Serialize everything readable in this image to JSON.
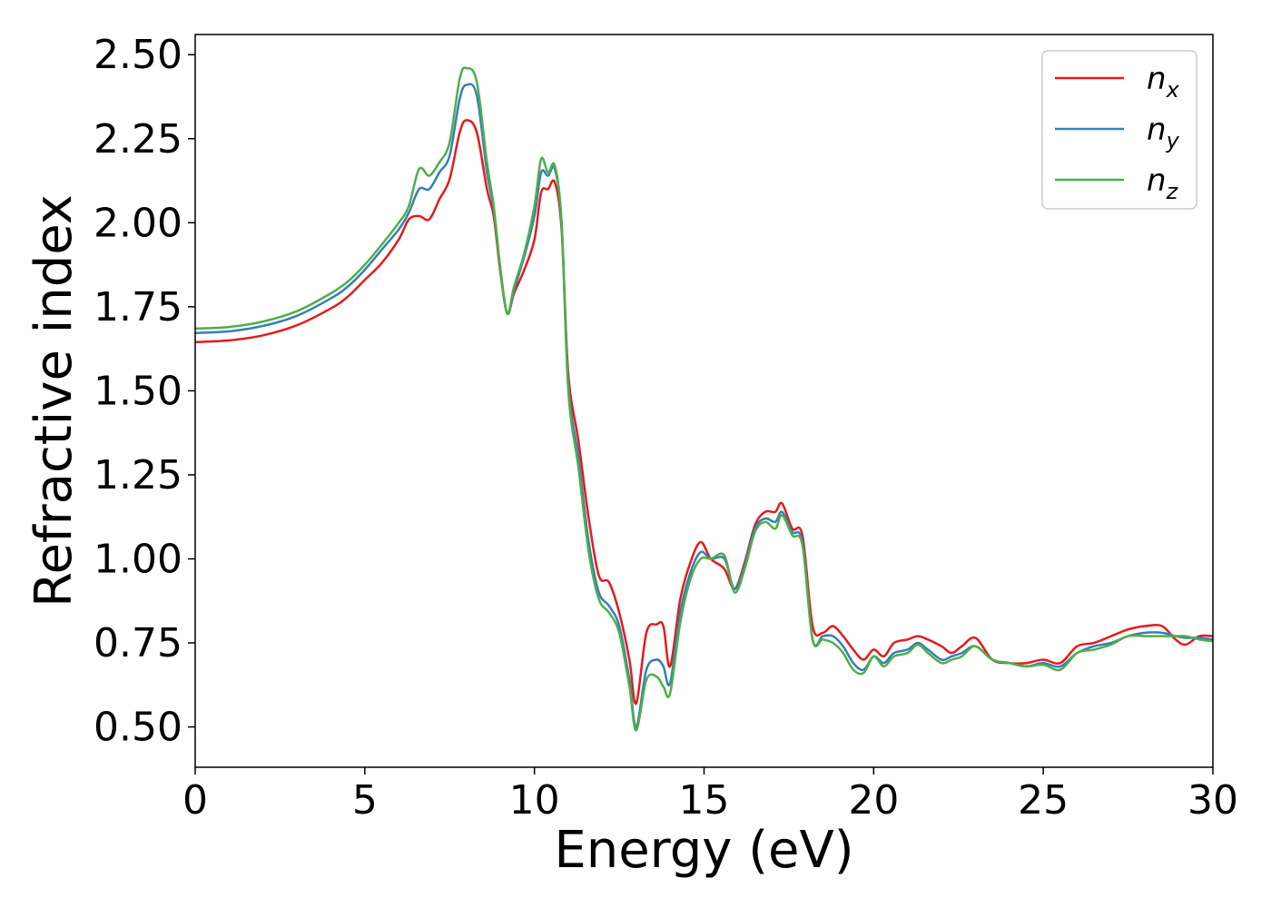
{
  "chart_data": {
    "type": "line",
    "title": "",
    "xlabel": "Energy (eV)",
    "ylabel": "Refractive index",
    "xlim": [
      0,
      30
    ],
    "ylim": [
      0.38,
      2.56
    ],
    "xticks": [
      0,
      5,
      10,
      15,
      20,
      25,
      30
    ],
    "xtick_labels": [
      "0",
      "5",
      "10",
      "15",
      "20",
      "25",
      "30"
    ],
    "yticks": [
      0.5,
      0.75,
      1.0,
      1.25,
      1.5,
      1.75,
      2.0,
      2.25,
      2.5
    ],
    "ytick_labels": [
      "0.50",
      "0.75",
      "1.00",
      "1.25",
      "1.50",
      "1.75",
      "2.00",
      "2.25",
      "2.50"
    ],
    "grid": false,
    "legend_position": "top-right",
    "series": [
      {
        "name": "n_x",
        "label_base": "n",
        "label_sub": "x",
        "color": "#e41a1c",
        "points": [
          [
            0,
            1.645
          ],
          [
            1,
            1.65
          ],
          [
            2,
            1.665
          ],
          [
            3,
            1.695
          ],
          [
            4,
            1.745
          ],
          [
            4.5,
            1.78
          ],
          [
            5,
            1.83
          ],
          [
            5.5,
            1.88
          ],
          [
            6,
            1.95
          ],
          [
            6.3,
            2.01
          ],
          [
            6.6,
            2.02
          ],
          [
            6.9,
            2.01
          ],
          [
            7.2,
            2.07
          ],
          [
            7.5,
            2.13
          ],
          [
            7.8,
            2.27
          ],
          [
            8.0,
            2.305
          ],
          [
            8.3,
            2.27
          ],
          [
            8.6,
            2.1
          ],
          [
            8.8,
            2.02
          ],
          [
            9.0,
            1.85
          ],
          [
            9.2,
            1.73
          ],
          [
            9.4,
            1.79
          ],
          [
            9.7,
            1.86
          ],
          [
            10.0,
            1.95
          ],
          [
            10.2,
            2.09
          ],
          [
            10.4,
            2.1
          ],
          [
            10.6,
            2.12
          ],
          [
            10.8,
            1.98
          ],
          [
            11.0,
            1.55
          ],
          [
            11.3,
            1.35
          ],
          [
            11.6,
            1.12
          ],
          [
            11.9,
            0.95
          ],
          [
            12.2,
            0.93
          ],
          [
            12.5,
            0.84
          ],
          [
            12.8,
            0.7
          ],
          [
            13.0,
            0.57
          ],
          [
            13.3,
            0.78
          ],
          [
            13.6,
            0.805
          ],
          [
            13.8,
            0.8
          ],
          [
            14.0,
            0.68
          ],
          [
            14.3,
            0.88
          ],
          [
            14.6,
            0.99
          ],
          [
            14.9,
            1.05
          ],
          [
            15.2,
            1.0
          ],
          [
            15.6,
            0.97
          ],
          [
            15.9,
            0.91
          ],
          [
            16.2,
            0.99
          ],
          [
            16.5,
            1.1
          ],
          [
            16.8,
            1.14
          ],
          [
            17.1,
            1.14
          ],
          [
            17.3,
            1.165
          ],
          [
            17.6,
            1.09
          ],
          [
            17.9,
            1.07
          ],
          [
            18.2,
            0.8
          ],
          [
            18.5,
            0.78
          ],
          [
            18.8,
            0.8
          ],
          [
            19.1,
            0.77
          ],
          [
            19.4,
            0.73
          ],
          [
            19.7,
            0.7
          ],
          [
            20.0,
            0.73
          ],
          [
            20.3,
            0.71
          ],
          [
            20.6,
            0.75
          ],
          [
            21.0,
            0.76
          ],
          [
            21.3,
            0.77
          ],
          [
            21.6,
            0.76
          ],
          [
            22.0,
            0.74
          ],
          [
            22.3,
            0.72
          ],
          [
            22.6,
            0.74
          ],
          [
            23.0,
            0.765
          ],
          [
            23.5,
            0.7
          ],
          [
            24.0,
            0.69
          ],
          [
            24.5,
            0.69
          ],
          [
            25.0,
            0.7
          ],
          [
            25.5,
            0.69
          ],
          [
            26.0,
            0.74
          ],
          [
            26.5,
            0.75
          ],
          [
            27.0,
            0.77
          ],
          [
            27.5,
            0.79
          ],
          [
            28.0,
            0.8
          ],
          [
            28.5,
            0.8
          ],
          [
            28.9,
            0.76
          ],
          [
            29.2,
            0.745
          ],
          [
            29.6,
            0.77
          ],
          [
            30.0,
            0.77
          ]
        ]
      },
      {
        "name": "n_y",
        "label_base": "n",
        "label_sub": "y",
        "color": "#377eb8",
        "points": [
          [
            0,
            1.672
          ],
          [
            1,
            1.677
          ],
          [
            2,
            1.693
          ],
          [
            3,
            1.723
          ],
          [
            4,
            1.775
          ],
          [
            4.5,
            1.81
          ],
          [
            5,
            1.86
          ],
          [
            5.5,
            1.92
          ],
          [
            6,
            1.98
          ],
          [
            6.3,
            2.03
          ],
          [
            6.6,
            2.1
          ],
          [
            6.9,
            2.1
          ],
          [
            7.2,
            2.15
          ],
          [
            7.5,
            2.2
          ],
          [
            7.8,
            2.37
          ],
          [
            8.0,
            2.41
          ],
          [
            8.3,
            2.38
          ],
          [
            8.6,
            2.15
          ],
          [
            8.8,
            2.04
          ],
          [
            9.0,
            1.86
          ],
          [
            9.2,
            1.73
          ],
          [
            9.4,
            1.8
          ],
          [
            9.7,
            1.9
          ],
          [
            10.0,
            2.02
          ],
          [
            10.2,
            2.15
          ],
          [
            10.4,
            2.14
          ],
          [
            10.6,
            2.16
          ],
          [
            10.8,
            2.0
          ],
          [
            11.0,
            1.52
          ],
          [
            11.3,
            1.3
          ],
          [
            11.6,
            1.05
          ],
          [
            11.9,
            0.9
          ],
          [
            12.2,
            0.86
          ],
          [
            12.5,
            0.8
          ],
          [
            12.8,
            0.64
          ],
          [
            13.0,
            0.5
          ],
          [
            13.3,
            0.67
          ],
          [
            13.6,
            0.7
          ],
          [
            13.8,
            0.68
          ],
          [
            14.0,
            0.63
          ],
          [
            14.3,
            0.84
          ],
          [
            14.6,
            0.96
          ],
          [
            14.9,
            1.02
          ],
          [
            15.2,
            1.0
          ],
          [
            15.6,
            1.0
          ],
          [
            15.9,
            0.91
          ],
          [
            16.2,
            0.98
          ],
          [
            16.5,
            1.09
          ],
          [
            16.8,
            1.12
          ],
          [
            17.1,
            1.11
          ],
          [
            17.3,
            1.14
          ],
          [
            17.6,
            1.08
          ],
          [
            17.9,
            1.05
          ],
          [
            18.2,
            0.76
          ],
          [
            18.5,
            0.77
          ],
          [
            18.8,
            0.77
          ],
          [
            19.1,
            0.74
          ],
          [
            19.4,
            0.69
          ],
          [
            19.7,
            0.67
          ],
          [
            20.0,
            0.71
          ],
          [
            20.3,
            0.69
          ],
          [
            20.6,
            0.72
          ],
          [
            21.0,
            0.73
          ],
          [
            21.3,
            0.75
          ],
          [
            21.6,
            0.73
          ],
          [
            22.0,
            0.7
          ],
          [
            22.3,
            0.71
          ],
          [
            22.6,
            0.72
          ],
          [
            23.0,
            0.74
          ],
          [
            23.5,
            0.7
          ],
          [
            24.0,
            0.69
          ],
          [
            24.5,
            0.68
          ],
          [
            25.0,
            0.69
          ],
          [
            25.5,
            0.68
          ],
          [
            26.0,
            0.72
          ],
          [
            26.5,
            0.74
          ],
          [
            27.0,
            0.75
          ],
          [
            27.5,
            0.77
          ],
          [
            28.0,
            0.78
          ],
          [
            28.5,
            0.78
          ],
          [
            28.9,
            0.77
          ],
          [
            29.2,
            0.765
          ],
          [
            29.6,
            0.765
          ],
          [
            30.0,
            0.76
          ]
        ]
      },
      {
        "name": "n_z",
        "label_base": "n",
        "label_sub": "z",
        "color": "#4daf4a",
        "points": [
          [
            0,
            1.685
          ],
          [
            1,
            1.69
          ],
          [
            2,
            1.706
          ],
          [
            3,
            1.737
          ],
          [
            4,
            1.79
          ],
          [
            4.5,
            1.825
          ],
          [
            5,
            1.875
          ],
          [
            5.5,
            1.935
          ],
          [
            6,
            2.0
          ],
          [
            6.3,
            2.05
          ],
          [
            6.6,
            2.16
          ],
          [
            6.9,
            2.14
          ],
          [
            7.2,
            2.18
          ],
          [
            7.5,
            2.24
          ],
          [
            7.8,
            2.43
          ],
          [
            8.0,
            2.46
          ],
          [
            8.3,
            2.42
          ],
          [
            8.6,
            2.18
          ],
          [
            8.8,
            2.05
          ],
          [
            9.0,
            1.86
          ],
          [
            9.2,
            1.73
          ],
          [
            9.4,
            1.81
          ],
          [
            9.7,
            1.91
          ],
          [
            10.0,
            2.05
          ],
          [
            10.2,
            2.19
          ],
          [
            10.4,
            2.15
          ],
          [
            10.6,
            2.17
          ],
          [
            10.8,
            2.0
          ],
          [
            11.0,
            1.5
          ],
          [
            11.3,
            1.27
          ],
          [
            11.6,
            1.02
          ],
          [
            11.9,
            0.88
          ],
          [
            12.2,
            0.84
          ],
          [
            12.5,
            0.78
          ],
          [
            12.8,
            0.62
          ],
          [
            13.0,
            0.49
          ],
          [
            13.3,
            0.64
          ],
          [
            13.6,
            0.65
          ],
          [
            13.8,
            0.62
          ],
          [
            14.0,
            0.6
          ],
          [
            14.3,
            0.81
          ],
          [
            14.6,
            0.94
          ],
          [
            14.9,
            1.0
          ],
          [
            15.2,
            1.0
          ],
          [
            15.6,
            1.01
          ],
          [
            15.9,
            0.9
          ],
          [
            16.2,
            0.97
          ],
          [
            16.5,
            1.08
          ],
          [
            16.8,
            1.11
          ],
          [
            17.1,
            1.09
          ],
          [
            17.3,
            1.13
          ],
          [
            17.6,
            1.07
          ],
          [
            17.9,
            1.04
          ],
          [
            18.2,
            0.76
          ],
          [
            18.5,
            0.76
          ],
          [
            18.8,
            0.75
          ],
          [
            19.1,
            0.72
          ],
          [
            19.4,
            0.67
          ],
          [
            19.7,
            0.66
          ],
          [
            20.0,
            0.71
          ],
          [
            20.3,
            0.68
          ],
          [
            20.6,
            0.71
          ],
          [
            21.0,
            0.72
          ],
          [
            21.3,
            0.745
          ],
          [
            21.6,
            0.72
          ],
          [
            22.0,
            0.69
          ],
          [
            22.3,
            0.7
          ],
          [
            22.6,
            0.71
          ],
          [
            23.0,
            0.74
          ],
          [
            23.5,
            0.7
          ],
          [
            24.0,
            0.69
          ],
          [
            24.5,
            0.68
          ],
          [
            25.0,
            0.685
          ],
          [
            25.5,
            0.67
          ],
          [
            26.0,
            0.72
          ],
          [
            26.5,
            0.73
          ],
          [
            27.0,
            0.745
          ],
          [
            27.5,
            0.77
          ],
          [
            28.0,
            0.77
          ],
          [
            28.5,
            0.77
          ],
          [
            28.9,
            0.77
          ],
          [
            29.2,
            0.77
          ],
          [
            29.6,
            0.76
          ],
          [
            30.0,
            0.755
          ]
        ]
      }
    ]
  }
}
